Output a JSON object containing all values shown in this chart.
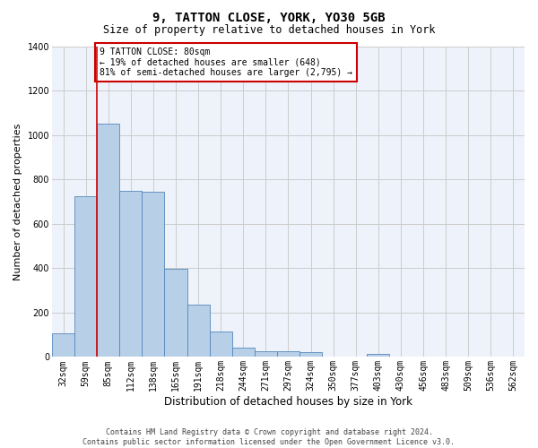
{
  "title": "9, TATTON CLOSE, YORK, YO30 5GB",
  "subtitle": "Size of property relative to detached houses in York",
  "xlabel": "Distribution of detached houses by size in York",
  "ylabel": "Number of detached properties",
  "categories": [
    "32sqm",
    "59sqm",
    "85sqm",
    "112sqm",
    "138sqm",
    "165sqm",
    "191sqm",
    "218sqm",
    "244sqm",
    "271sqm",
    "297sqm",
    "324sqm",
    "350sqm",
    "377sqm",
    "403sqm",
    "430sqm",
    "456sqm",
    "483sqm",
    "509sqm",
    "536sqm",
    "562sqm"
  ],
  "values": [
    107,
    724,
    1052,
    748,
    744,
    397,
    235,
    113,
    44,
    27,
    27,
    20,
    0,
    0,
    13,
    0,
    0,
    0,
    0,
    0,
    0
  ],
  "bar_color": "#b8cfe8",
  "bar_edge_color": "#5588bb",
  "ylim": [
    0,
    1400
  ],
  "yticks": [
    0,
    200,
    400,
    600,
    800,
    1000,
    1200,
    1400
  ],
  "property_line_index": 2,
  "property_line_color": "#cc0000",
  "annotation_text": "9 TATTON CLOSE: 80sqm\n← 19% of detached houses are smaller (648)\n81% of semi-detached houses are larger (2,795) →",
  "annotation_box_color": "#cc0000",
  "footer_line1": "Contains HM Land Registry data © Crown copyright and database right 2024.",
  "footer_line2": "Contains public sector information licensed under the Open Government Licence v3.0.",
  "background_color": "#eef2fb",
  "grid_color": "#cccccc",
  "title_fontsize": 10,
  "subtitle_fontsize": 8.5,
  "ylabel_fontsize": 8,
  "xlabel_fontsize": 8.5,
  "tick_fontsize": 7,
  "annotation_fontsize": 7,
  "footer_fontsize": 6
}
